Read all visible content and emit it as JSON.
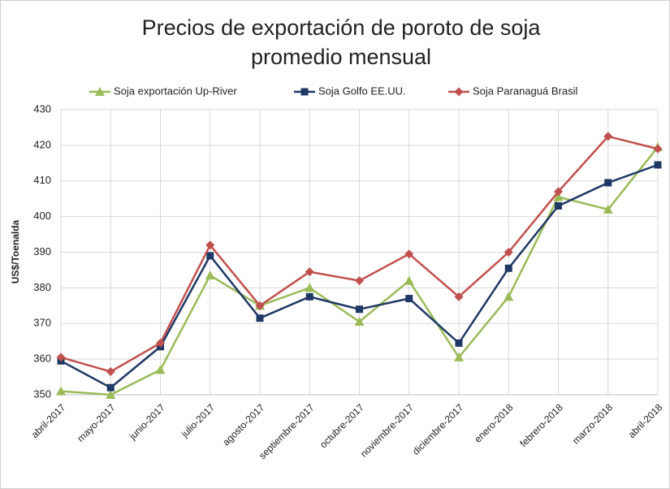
{
  "chart_data": {
    "type": "line",
    "title": "Precios de exportación de poroto de soja",
    "subtitle": "promedio mensual",
    "ylabel": "US$/Toenalda",
    "categories": [
      "abril-2017",
      "mayo-2017",
      "junio-2017",
      "julio-2017",
      "agosto-2017",
      "septiembre-2017",
      "octubre-2017",
      "noviembre-2017",
      "diciembre-2017",
      "enero-2018",
      "febrero-2018",
      "marzo-2018",
      "abril-2018"
    ],
    "series": [
      {
        "name": "Soja exportación Up-River",
        "color": "#9bbb59",
        "marker": "triangle",
        "values": [
          351,
          350,
          357,
          383.5,
          375,
          380,
          370.5,
          382,
          360.5,
          377.5,
          405.5,
          402,
          419.5
        ]
      },
      {
        "name": "Soja Golfo EE.UU.",
        "color": "#1f3864",
        "marker": "square",
        "values": [
          359.5,
          352,
          363.5,
          389,
          371.5,
          377.5,
          374,
          377,
          364.5,
          385.5,
          403,
          409.5,
          414.5
        ]
      },
      {
        "name": "Soja Paranaguá Brasil",
        "color": "#c0504d",
        "marker": "diamond",
        "values": [
          360.5,
          356.5,
          364.5,
          392,
          375,
          384.5,
          382,
          389.5,
          377.5,
          390,
          407,
          422.5,
          419
        ]
      }
    ],
    "ylim": [
      350,
      430
    ],
    "yticks": [
      350,
      360,
      370,
      380,
      390,
      400,
      410,
      420,
      430
    ],
    "grid": true
  }
}
